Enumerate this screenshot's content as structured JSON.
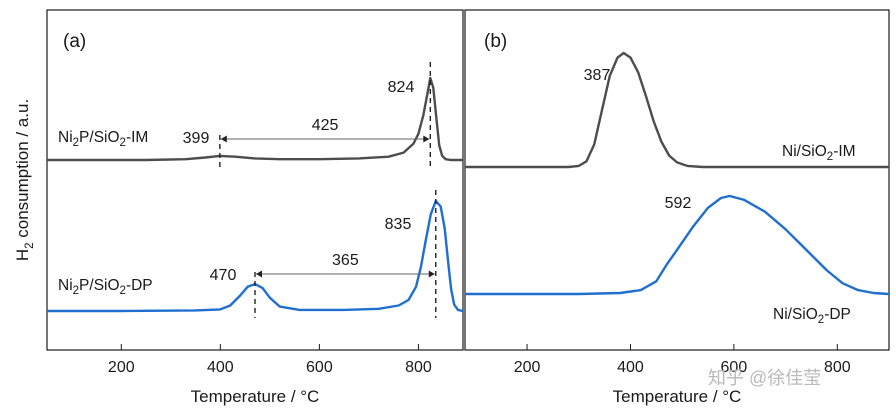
{
  "y_axis_label": {
    "main": "H",
    "sub": "2",
    "rest": " consumption / a.u."
  },
  "watermark": "知乎 @徐佳莹",
  "colors": {
    "im": "#4d4d4d",
    "dp": "#1f6fd1",
    "axis": "#1a1a1a",
    "dash": "#222222",
    "arrow": "#666666"
  },
  "chart_data": [
    {
      "type": "line",
      "panel": "(a)",
      "xlabel": "Temperature / °C",
      "ylabel": "H2 consumption / a.u.",
      "xlim": [
        50,
        890
      ],
      "xticks": [
        200,
        400,
        600,
        800
      ],
      "xtick_labels": [
        "200",
        "400",
        "600",
        "800"
      ],
      "series": [
        {
          "name": "Ni2P/SiO2-IM",
          "label_parts": [
            "Ni",
            "2",
            "P/SiO",
            "2",
            "-IM"
          ],
          "peaks": [
            {
              "x": 399,
              "label": "399"
            },
            {
              "x": 824,
              "label": "824"
            }
          ],
          "x": [
            50,
            150,
            250,
            330,
            370,
            399,
            430,
            470,
            520,
            600,
            680,
            740,
            770,
            790,
            800,
            810,
            818,
            824,
            830,
            836,
            842,
            848,
            855,
            865,
            890
          ],
          "y": [
            0.0,
            0.0,
            0.0,
            0.01,
            0.03,
            0.05,
            0.04,
            0.02,
            0.01,
            0.01,
            0.02,
            0.04,
            0.09,
            0.2,
            0.32,
            0.55,
            0.8,
            1.0,
            0.88,
            0.52,
            0.18,
            0.05,
            0.01,
            0.0,
            0.0
          ]
        },
        {
          "name": "Ni2P/SiO2-DP",
          "label_parts": [
            "Ni",
            "2",
            "P/SiO",
            "2",
            "-DP"
          ],
          "peaks": [
            {
              "x": 470,
              "label": "470"
            },
            {
              "x": 835,
              "label": "835"
            }
          ],
          "x": [
            50,
            200,
            350,
            400,
            420,
            440,
            455,
            470,
            485,
            500,
            520,
            560,
            650,
            720,
            760,
            780,
            795,
            805,
            815,
            825,
            835,
            845,
            853,
            860,
            866,
            872,
            880,
            890
          ],
          "y": [
            0.0,
            0.0,
            0.005,
            0.015,
            0.05,
            0.14,
            0.22,
            0.245,
            0.21,
            0.12,
            0.04,
            0.01,
            0.01,
            0.02,
            0.05,
            0.1,
            0.22,
            0.4,
            0.65,
            0.88,
            1.0,
            0.95,
            0.75,
            0.45,
            0.2,
            0.06,
            0.01,
            0.0
          ]
        }
      ],
      "annotations": [
        {
          "text": "425",
          "from": 399,
          "to": 824,
          "series": "Ni2P/SiO2-IM"
        },
        {
          "text": "365",
          "from": 470,
          "to": 835,
          "series": "Ni2P/SiO2-DP"
        }
      ]
    },
    {
      "type": "line",
      "panel": "(b)",
      "xlabel": "Temperature / °C",
      "xlim": [
        80,
        900
      ],
      "xticks": [
        200,
        400,
        600,
        800
      ],
      "xtick_labels": [
        "200",
        "400",
        "600",
        "800"
      ],
      "series": [
        {
          "name": "Ni/SiO2-IM",
          "label_parts": [
            "Ni/SiO",
            "2",
            "-IM"
          ],
          "peaks": [
            {
              "x": 387,
              "label": "387"
            }
          ],
          "x": [
            80,
            200,
            280,
            300,
            315,
            330,
            345,
            360,
            375,
            387,
            400,
            415,
            430,
            445,
            460,
            475,
            490,
            510,
            540,
            600,
            700,
            800,
            900
          ],
          "y": [
            0.0,
            0.0,
            0.0,
            0.01,
            0.05,
            0.2,
            0.5,
            0.8,
            0.96,
            1.0,
            0.96,
            0.83,
            0.62,
            0.4,
            0.22,
            0.1,
            0.04,
            0.01,
            0.0,
            0.0,
            0.0,
            0.0,
            0.0
          ]
        },
        {
          "name": "Ni/SiO2-DP",
          "label_parts": [
            "Ni/SiO",
            "2",
            "-DP"
          ],
          "peaks": [
            {
              "x": 592,
              "label": "592"
            }
          ],
          "x": [
            80,
            300,
            380,
            420,
            450,
            470,
            490,
            520,
            550,
            575,
            592,
            620,
            660,
            700,
            740,
            780,
            810,
            840,
            870,
            900
          ],
          "y": [
            0.0,
            0.0,
            0.01,
            0.04,
            0.13,
            0.3,
            0.45,
            0.68,
            0.88,
            0.98,
            1.0,
            0.96,
            0.84,
            0.66,
            0.45,
            0.24,
            0.11,
            0.04,
            0.01,
            0.0
          ]
        }
      ]
    }
  ]
}
